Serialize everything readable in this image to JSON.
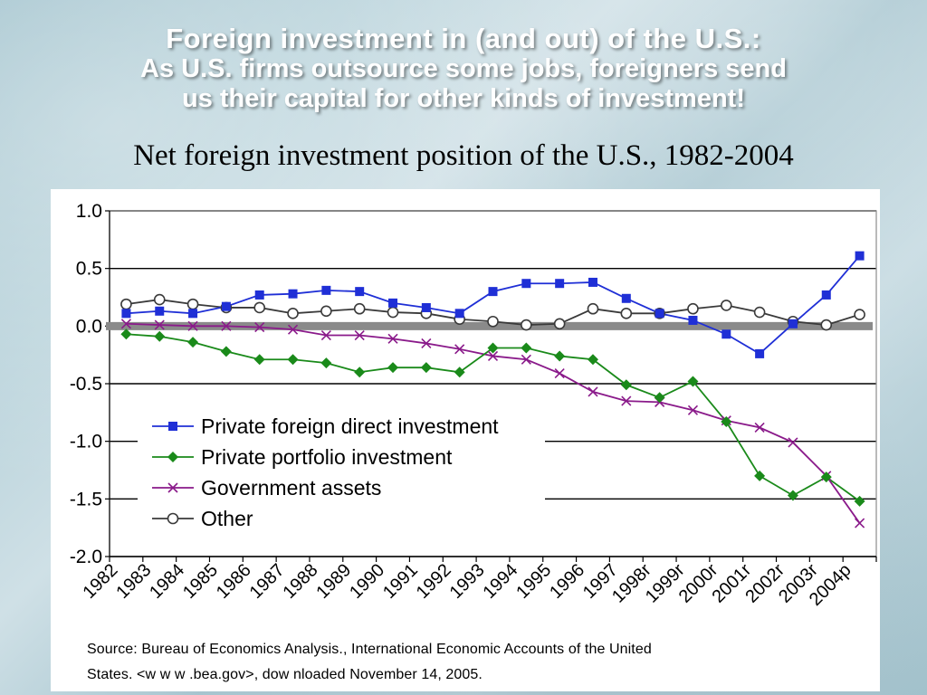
{
  "slide": {
    "title_line1": "Foreign investment in (and out) of the U.S.:",
    "title_line2": "As U.S. firms outsource some jobs, foreigners send",
    "title_line3": "us their capital for other kinds of investment!",
    "source_line1": "Source: Bureau of Economics Analysis., International   Economic Accounts of the United",
    "source_line2": "States.  <w w w .bea.gov>, dow nloaded November 14, 2005."
  },
  "chart_data": {
    "type": "line",
    "title": "Net foreign investment position of the U.S., 1982-2004",
    "xlabel": "",
    "ylabel": "",
    "x": [
      "1982",
      "1983",
      "1984",
      "1985",
      "1986",
      "1987",
      "1988",
      "1989",
      "1990",
      "1991",
      "1992",
      "1993",
      "1994",
      "1995",
      "1996",
      "1997",
      "1998r",
      "1999r",
      "2000r",
      "2001r",
      "2002r",
      "2003r",
      "2004p"
    ],
    "ylim": [
      -2.0,
      1.0
    ],
    "yticks": [
      "1.0",
      "0.5",
      "0.0",
      "-0.5",
      "-1.0",
      "-1.5",
      "-2.0"
    ],
    "ytick_values": [
      1.0,
      0.5,
      0.0,
      -0.5,
      -1.0,
      -1.5,
      -2.0
    ],
    "grid": true,
    "legend_position": "center-left",
    "series": [
      {
        "name": "Private foreign direct investment",
        "color": "#1f2fd6",
        "marker": "square",
        "values": [
          0.11,
          0.13,
          0.11,
          0.17,
          0.27,
          0.28,
          0.31,
          0.3,
          0.2,
          0.16,
          0.11,
          0.3,
          0.37,
          0.37,
          0.38,
          0.24,
          0.11,
          0.05,
          -0.07,
          -0.24,
          0.02,
          0.27,
          0.61
        ]
      },
      {
        "name": "Private portfolio investment",
        "color": "#1a8a1a",
        "marker": "diamond",
        "values": [
          -0.07,
          -0.09,
          -0.14,
          -0.22,
          -0.29,
          -0.29,
          -0.32,
          -0.4,
          -0.36,
          -0.36,
          -0.4,
          -0.19,
          -0.19,
          -0.26,
          -0.29,
          -0.51,
          -0.62,
          -0.48,
          -0.83,
          -1.3,
          -1.47,
          -1.31,
          -1.52
        ]
      },
      {
        "name": "Government assets",
        "color": "#8a1a8a",
        "marker": "x",
        "values": [
          0.02,
          0.01,
          0.0,
          0.0,
          -0.01,
          -0.03,
          -0.08,
          -0.08,
          -0.11,
          -0.15,
          -0.2,
          -0.26,
          -0.29,
          -0.41,
          -0.57,
          -0.65,
          -0.66,
          -0.73,
          -0.82,
          -0.88,
          -1.01,
          -1.3,
          -1.71
        ]
      },
      {
        "name": "Other",
        "color": "#3a3a3a",
        "marker": "circle",
        "values": [
          0.19,
          0.23,
          0.19,
          0.16,
          0.16,
          0.11,
          0.13,
          0.15,
          0.12,
          0.11,
          0.06,
          0.04,
          0.01,
          0.02,
          0.15,
          0.11,
          0.11,
          0.15,
          0.18,
          0.12,
          0.04,
          0.01,
          0.1
        ]
      }
    ]
  }
}
